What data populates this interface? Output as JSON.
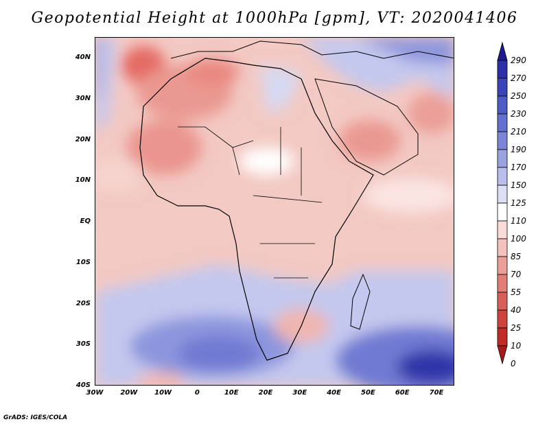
{
  "title": "Geopotential Height at 1000hPa [gpm], VT: 2020041406",
  "credit": "GrADS: IGES/COLA",
  "lat_labels": [
    "40N",
    "30N",
    "20N",
    "10N",
    "EQ",
    "10S",
    "20S",
    "30S",
    "40S"
  ],
  "lon_labels": [
    "30W",
    "20W",
    "10W",
    "0",
    "10E",
    "20E",
    "30E",
    "40E",
    "50E",
    "60E",
    "70E"
  ],
  "colorbar": {
    "labels": [
      "290",
      "270",
      "250",
      "230",
      "210",
      "190",
      "170",
      "150",
      "125",
      "110",
      "100",
      "85",
      "70",
      "55",
      "40",
      "25",
      "10",
      "0"
    ],
    "colors": [
      "#1c1a8e",
      "#2b2fa8",
      "#3b45b8",
      "#4e5bc4",
      "#6470cf",
      "#7b86d8",
      "#9aa2e0",
      "#b9bfea",
      "#dcdff5",
      "#ffffff",
      "#f9dcd8",
      "#f3c2bc",
      "#ec9f98",
      "#e37e77",
      "#da5e58",
      "#cf433e",
      "#c12b27",
      "#a9181a"
    ]
  }
}
